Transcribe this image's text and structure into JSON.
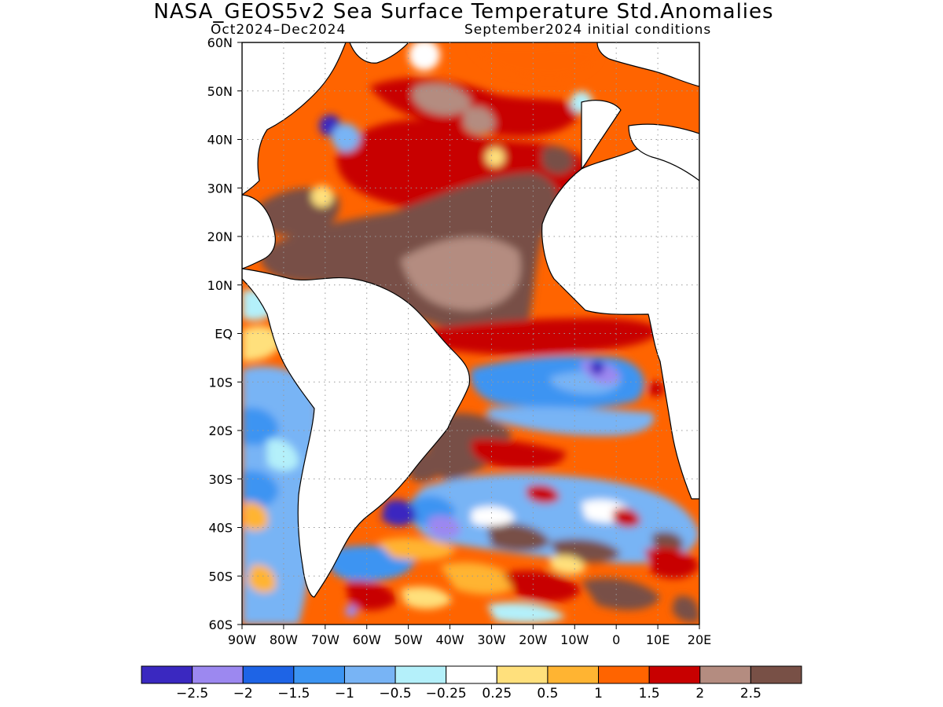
{
  "title": "NASA_GEOS5v2 Sea Surface Temperature Std.Anomalies",
  "subtitle_left": "Oct2024–Dec2024",
  "subtitle_right": "September2024 initial conditions",
  "map": {
    "lon_range": [
      -90,
      20
    ],
    "lat_range": [
      -60,
      60
    ],
    "grid": "dotted",
    "lat_ticks": [
      {
        "v": 60,
        "label": "60N"
      },
      {
        "v": 50,
        "label": "50N"
      },
      {
        "v": 40,
        "label": "40N"
      },
      {
        "v": 30,
        "label": "30N"
      },
      {
        "v": 20,
        "label": "20N"
      },
      {
        "v": 10,
        "label": "10N"
      },
      {
        "v": 0,
        "label": "EQ"
      },
      {
        "v": -10,
        "label": "10S"
      },
      {
        "v": -20,
        "label": "20S"
      },
      {
        "v": -30,
        "label": "30S"
      },
      {
        "v": -40,
        "label": "40S"
      },
      {
        "v": -50,
        "label": "50S"
      },
      {
        "v": -60,
        "label": "60S"
      }
    ],
    "lon_ticks": [
      {
        "v": -90,
        "label": "90W"
      },
      {
        "v": -80,
        "label": "80W"
      },
      {
        "v": -70,
        "label": "70W"
      },
      {
        "v": -60,
        "label": "60W"
      },
      {
        "v": -50,
        "label": "50W"
      },
      {
        "v": -40,
        "label": "40W"
      },
      {
        "v": -30,
        "label": "30W"
      },
      {
        "v": -20,
        "label": "20W"
      },
      {
        "v": -10,
        "label": "10W"
      },
      {
        "v": 0,
        "label": "0"
      },
      {
        "v": 10,
        "label": "10E"
      },
      {
        "v": 20,
        "label": "20E"
      }
    ]
  },
  "colorbar": {
    "colors": [
      "#3a28c0",
      "#9c88f0",
      "#1e64e6",
      "#3c94f2",
      "#78b4f5",
      "#b4f0fa",
      "#ffffff",
      "#ffe07c",
      "#ffb432",
      "#ff6400",
      "#c80000",
      "#b48c80",
      "#785046"
    ],
    "labels": [
      "−2.5",
      "−2",
      "−1.5",
      "−1",
      "−0.5",
      "−0.25",
      "0.25",
      "0.5",
      "1",
      "1.5",
      "2",
      "2.5"
    ]
  }
}
